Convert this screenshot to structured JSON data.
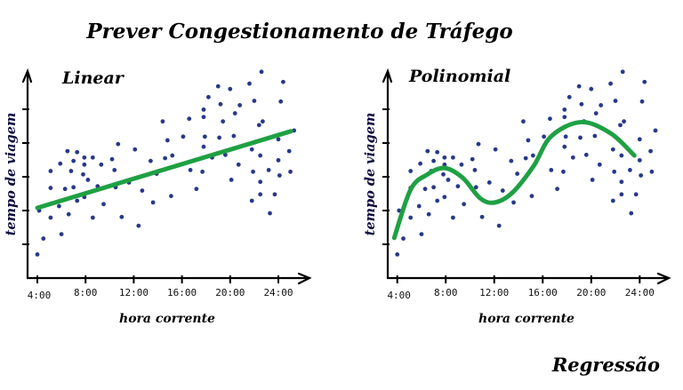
{
  "title": "Prever Congestionamento de Tráfego",
  "footer": "Regressão",
  "colors": {
    "points": "#27398a",
    "fit": "#1fa043",
    "axis": "#000000"
  },
  "chart_data": [
    {
      "type": "scatter",
      "title": "Linear",
      "xlabel": "hora corrente",
      "ylabel": "tempo de viagem",
      "xticks": [
        {
          "h": 4,
          "label": "4:00"
        },
        {
          "h": 8,
          "label": "8:00"
        },
        {
          "h": 12,
          "label": "12:00"
        },
        {
          "h": 16,
          "label": "16:00"
        },
        {
          "h": 20,
          "label": "20:00"
        },
        {
          "h": 24,
          "label": "24:00"
        }
      ],
      "yticks": [
        1,
        2,
        3,
        4,
        5
      ],
      "fit": {
        "kind": "linear",
        "points": [
          [
            4,
            2.08
          ],
          [
            25.05,
            4.35
          ]
        ]
      }
    },
    {
      "type": "scatter",
      "title": "Polinomial",
      "xlabel": "hora corrente",
      "ylabel": "tempo de viagem",
      "xticks": [
        {
          "h": 4,
          "label": "4:00"
        },
        {
          "h": 8,
          "label": "8:00"
        },
        {
          "h": 12,
          "label": "12:00"
        },
        {
          "h": 16,
          "label": "16:00"
        },
        {
          "h": 20,
          "label": "20:00"
        },
        {
          "h": 24,
          "label": "24:00"
        }
      ],
      "yticks": [
        1,
        2,
        3,
        4,
        5
      ],
      "fit": {
        "kind": "polynomial",
        "points": [
          [
            3.75,
            1.19
          ],
          [
            5.1,
            2.62
          ],
          [
            6.44,
            3.06
          ],
          [
            7.9,
            3.26
          ],
          [
            9.4,
            2.97
          ],
          [
            10.85,
            2.36
          ],
          [
            12.07,
            2.24
          ],
          [
            13.5,
            2.53
          ],
          [
            15.25,
            3.32
          ],
          [
            16.7,
            4.2
          ],
          [
            19.16,
            4.62
          ],
          [
            21.6,
            4.29
          ],
          [
            23.56,
            3.63
          ]
        ]
      }
    }
  ],
  "points": [
    [
      4.0,
      0.7
    ],
    [
      4.5,
      1.17
    ],
    [
      4.15,
      2.0
    ],
    [
      5.1,
      1.79
    ],
    [
      5.1,
      2.67
    ],
    [
      5.1,
      3.17
    ],
    [
      5.8,
      2.13
    ],
    [
      6.0,
      1.3
    ],
    [
      5.9,
      3.39
    ],
    [
      6.3,
      2.64
    ],
    [
      6.5,
      3.76
    ],
    [
      6.6,
      1.89
    ],
    [
      6.8,
      3.17
    ],
    [
      7.0,
      2.69
    ],
    [
      7.0,
      3.47
    ],
    [
      7.3,
      3.73
    ],
    [
      7.3,
      2.29
    ],
    [
      7.8,
      3.07
    ],
    [
      7.9,
      2.4
    ],
    [
      7.9,
      3.36
    ],
    [
      7.9,
      3.57
    ],
    [
      8.2,
      2.91
    ],
    [
      8.6,
      3.57
    ],
    [
      8.6,
      1.79
    ],
    [
      9.0,
      2.72
    ],
    [
      9.3,
      3.36
    ],
    [
      9.5,
      2.19
    ],
    [
      10.2,
      3.52
    ],
    [
      10.4,
      3.2
    ],
    [
      10.5,
      2.69
    ],
    [
      10.7,
      3.97
    ],
    [
      11.0,
      1.81
    ],
    [
      11.6,
      2.83
    ],
    [
      12.1,
      3.81
    ],
    [
      12.4,
      1.55
    ],
    [
      12.7,
      2.59
    ],
    [
      13.4,
      3.47
    ],
    [
      13.6,
      2.24
    ],
    [
      13.9,
      3.09
    ],
    [
      14.4,
      4.64
    ],
    [
      14.6,
      3.55
    ],
    [
      14.8,
      4.08
    ],
    [
      15.2,
      3.63
    ],
    [
      15.1,
      2.43
    ],
    [
      16.1,
      4.19
    ],
    [
      16.6,
      4.72
    ],
    [
      16.7,
      3.2
    ],
    [
      17.2,
      2.64
    ],
    [
      17.7,
      3.15
    ],
    [
      17.8,
      3.89
    ],
    [
      17.8,
      4.77
    ],
    [
      17.8,
      4.99
    ],
    [
      17.9,
      4.19
    ],
    [
      18.2,
      5.36
    ],
    [
      18.5,
      3.57
    ],
    [
      19.0,
      5.68
    ],
    [
      19.2,
      5.15
    ],
    [
      19.1,
      4.16
    ],
    [
      19.4,
      4.64
    ],
    [
      19.6,
      3.65
    ],
    [
      20.0,
      5.6
    ],
    [
      20.1,
      2.91
    ],
    [
      20.3,
      4.21
    ],
    [
      20.4,
      4.88
    ],
    [
      20.7,
      3.36
    ],
    [
      20.8,
      5.12
    ],
    [
      21.6,
      5.76
    ],
    [
      21.8,
      3.81
    ],
    [
      21.8,
      2.29
    ],
    [
      21.9,
      3.15
    ],
    [
      22.0,
      5.25
    ],
    [
      22.4,
      4.53
    ],
    [
      22.5,
      2.85
    ],
    [
      22.5,
      3.63
    ],
    [
      22.5,
      2.48
    ],
    [
      22.6,
      6.11
    ],
    [
      22.7,
      4.64
    ],
    [
      23.2,
      3.2
    ],
    [
      23.3,
      1.92
    ],
    [
      23.7,
      2.48
    ],
    [
      24.0,
      4.11
    ],
    [
      24.0,
      3.49
    ],
    [
      24.1,
      3.04
    ],
    [
      24.2,
      5.23
    ],
    [
      24.4,
      5.81
    ],
    [
      24.9,
      3.76
    ],
    [
      25.0,
      3.15
    ],
    [
      25.3,
      4.37
    ]
  ]
}
